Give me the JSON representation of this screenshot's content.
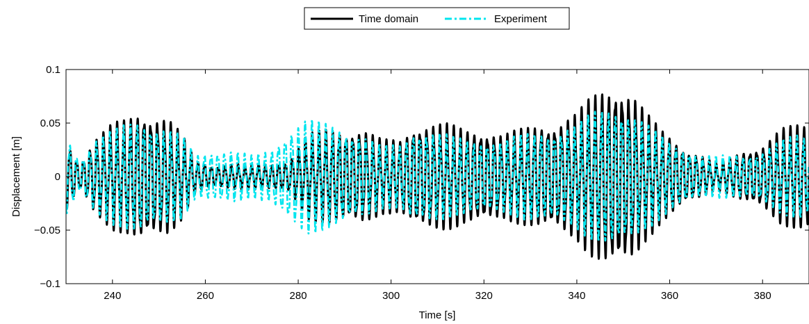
{
  "chart_data": {
    "type": "line",
    "title": "",
    "xlabel": "Time [s]",
    "ylabel": "Displacement [m]",
    "xlim": [
      230,
      390
    ],
    "ylim": [
      -0.1,
      0.1
    ],
    "xticks": [
      240,
      260,
      280,
      300,
      320,
      340,
      360,
      380
    ],
    "yticks": [
      -0.1,
      -0.05,
      0,
      0.05,
      0.1
    ],
    "ytick_labels": [
      "−0.1",
      "−0.05",
      "0",
      "0.05",
      "0.1"
    ],
    "grid": false,
    "legend": {
      "placement": "top-center",
      "orientation": "horizontal"
    },
    "series": [
      {
        "name": "Time domain",
        "color": "#000000",
        "style": "solid",
        "envelope": {
          "t": [
            230,
            233,
            236,
            240,
            243,
            246,
            249,
            252,
            255,
            258,
            262,
            266,
            270,
            274,
            278,
            282,
            286,
            290,
            294,
            298,
            302,
            305,
            308,
            312,
            316,
            320,
            324,
            328,
            332,
            336,
            340,
            343,
            346,
            349,
            352,
            355,
            358,
            361,
            364,
            367,
            370,
            373,
            376,
            380,
            384,
            388,
            390
          ],
          "amp": [
            0.035,
            0.012,
            0.035,
            0.05,
            0.055,
            0.065,
            0.058,
            0.055,
            0.04,
            0.015,
            0.01,
            0.012,
            0.012,
            0.012,
            0.015,
            0.04,
            0.045,
            0.045,
            0.045,
            0.035,
            0.035,
            0.05,
            0.05,
            0.05,
            0.045,
            0.045,
            0.04,
            0.045,
            0.05,
            0.052,
            0.06,
            0.075,
            0.085,
            0.09,
            0.08,
            0.06,
            0.045,
            0.035,
            0.025,
            0.02,
            0.012,
            0.018,
            0.025,
            0.03,
            0.045,
            0.05,
            0.05
          ]
        }
      },
      {
        "name": "Experiment",
        "color": "#00e5ee",
        "style": "dash-dot",
        "envelope": {
          "t": [
            230,
            233,
            236,
            240,
            243,
            246,
            249,
            252,
            255,
            258,
            262,
            266,
            270,
            274,
            278,
            282,
            286,
            290,
            294,
            298,
            302,
            305,
            308,
            312,
            316,
            320,
            324,
            328,
            332,
            336,
            340,
            343,
            346,
            349,
            352,
            355,
            358,
            361,
            364,
            367,
            370,
            373,
            376,
            380,
            384,
            388,
            390
          ],
          "amp": [
            0.04,
            0.015,
            0.035,
            0.045,
            0.05,
            0.055,
            0.05,
            0.045,
            0.04,
            0.02,
            0.025,
            0.025,
            0.02,
            0.025,
            0.045,
            0.055,
            0.05,
            0.045,
            0.04,
            0.03,
            0.03,
            0.045,
            0.045,
            0.04,
            0.035,
            0.035,
            0.035,
            0.04,
            0.042,
            0.045,
            0.05,
            0.06,
            0.065,
            0.07,
            0.06,
            0.05,
            0.04,
            0.03,
            0.025,
            0.02,
            0.02,
            0.02,
            0.02,
            0.025,
            0.035,
            0.04,
            0.035
          ]
        }
      }
    ]
  }
}
